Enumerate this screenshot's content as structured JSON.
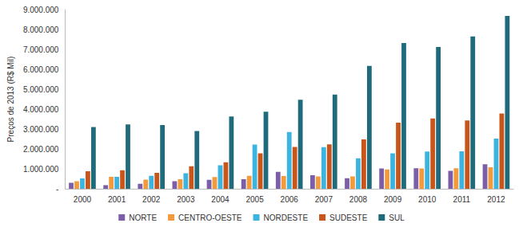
{
  "chart_data": {
    "type": "bar",
    "y_label": "Preços de 2013 (R$ Mil)",
    "categories": [
      "2000",
      "2001",
      "2002",
      "2003",
      "2004",
      "2005",
      "2006",
      "2007",
      "2008",
      "2009",
      "2010",
      "2011",
      "2012"
    ],
    "series": [
      {
        "name": "NORTE",
        "color": "#7b5ea7",
        "values": [
          300000,
          180000,
          250000,
          380000,
          450000,
          480000,
          850000,
          680000,
          530000,
          1020000,
          1030000,
          900000,
          1230000
        ]
      },
      {
        "name": "CENTRO-OESTE",
        "color": "#f39a3c",
        "values": [
          380000,
          600000,
          460000,
          480000,
          590000,
          650000,
          640000,
          620000,
          620000,
          970000,
          1020000,
          1030000,
          1080000
        ]
      },
      {
        "name": "NORDESTE",
        "color": "#3cb4e0",
        "values": [
          520000,
          600000,
          650000,
          780000,
          1180000,
          2220000,
          2850000,
          2090000,
          1530000,
          1780000,
          1870000,
          1880000,
          2520000
        ]
      },
      {
        "name": "SUDESTE",
        "color": "#c8561a",
        "values": [
          880000,
          930000,
          800000,
          1130000,
          1330000,
          1780000,
          2100000,
          2230000,
          2480000,
          3320000,
          3530000,
          3430000,
          3780000
        ]
      },
      {
        "name": "SUL",
        "color": "#1f6b7b",
        "values": [
          3100000,
          3230000,
          3200000,
          2900000,
          3630000,
          3870000,
          4470000,
          4730000,
          6170000,
          7320000,
          7120000,
          7650000,
          8680000
        ]
      }
    ],
    "ylim": [
      0,
      9000000
    ],
    "yticks": [
      {
        "value": 0,
        "label": "-"
      },
      {
        "value": 1000000,
        "label": "1.000.000"
      },
      {
        "value": 2000000,
        "label": "2.000.000"
      },
      {
        "value": 3000000,
        "label": "3.000.000"
      },
      {
        "value": 4000000,
        "label": "4.000.000"
      },
      {
        "value": 5000000,
        "label": "5.000.000"
      },
      {
        "value": 6000000,
        "label": "6.000.000"
      },
      {
        "value": 7000000,
        "label": "7.000.000"
      },
      {
        "value": 8000000,
        "label": "8.000.000"
      },
      {
        "value": 9000000,
        "label": "9.000.000"
      }
    ],
    "grid": false,
    "legend": "bottom"
  }
}
